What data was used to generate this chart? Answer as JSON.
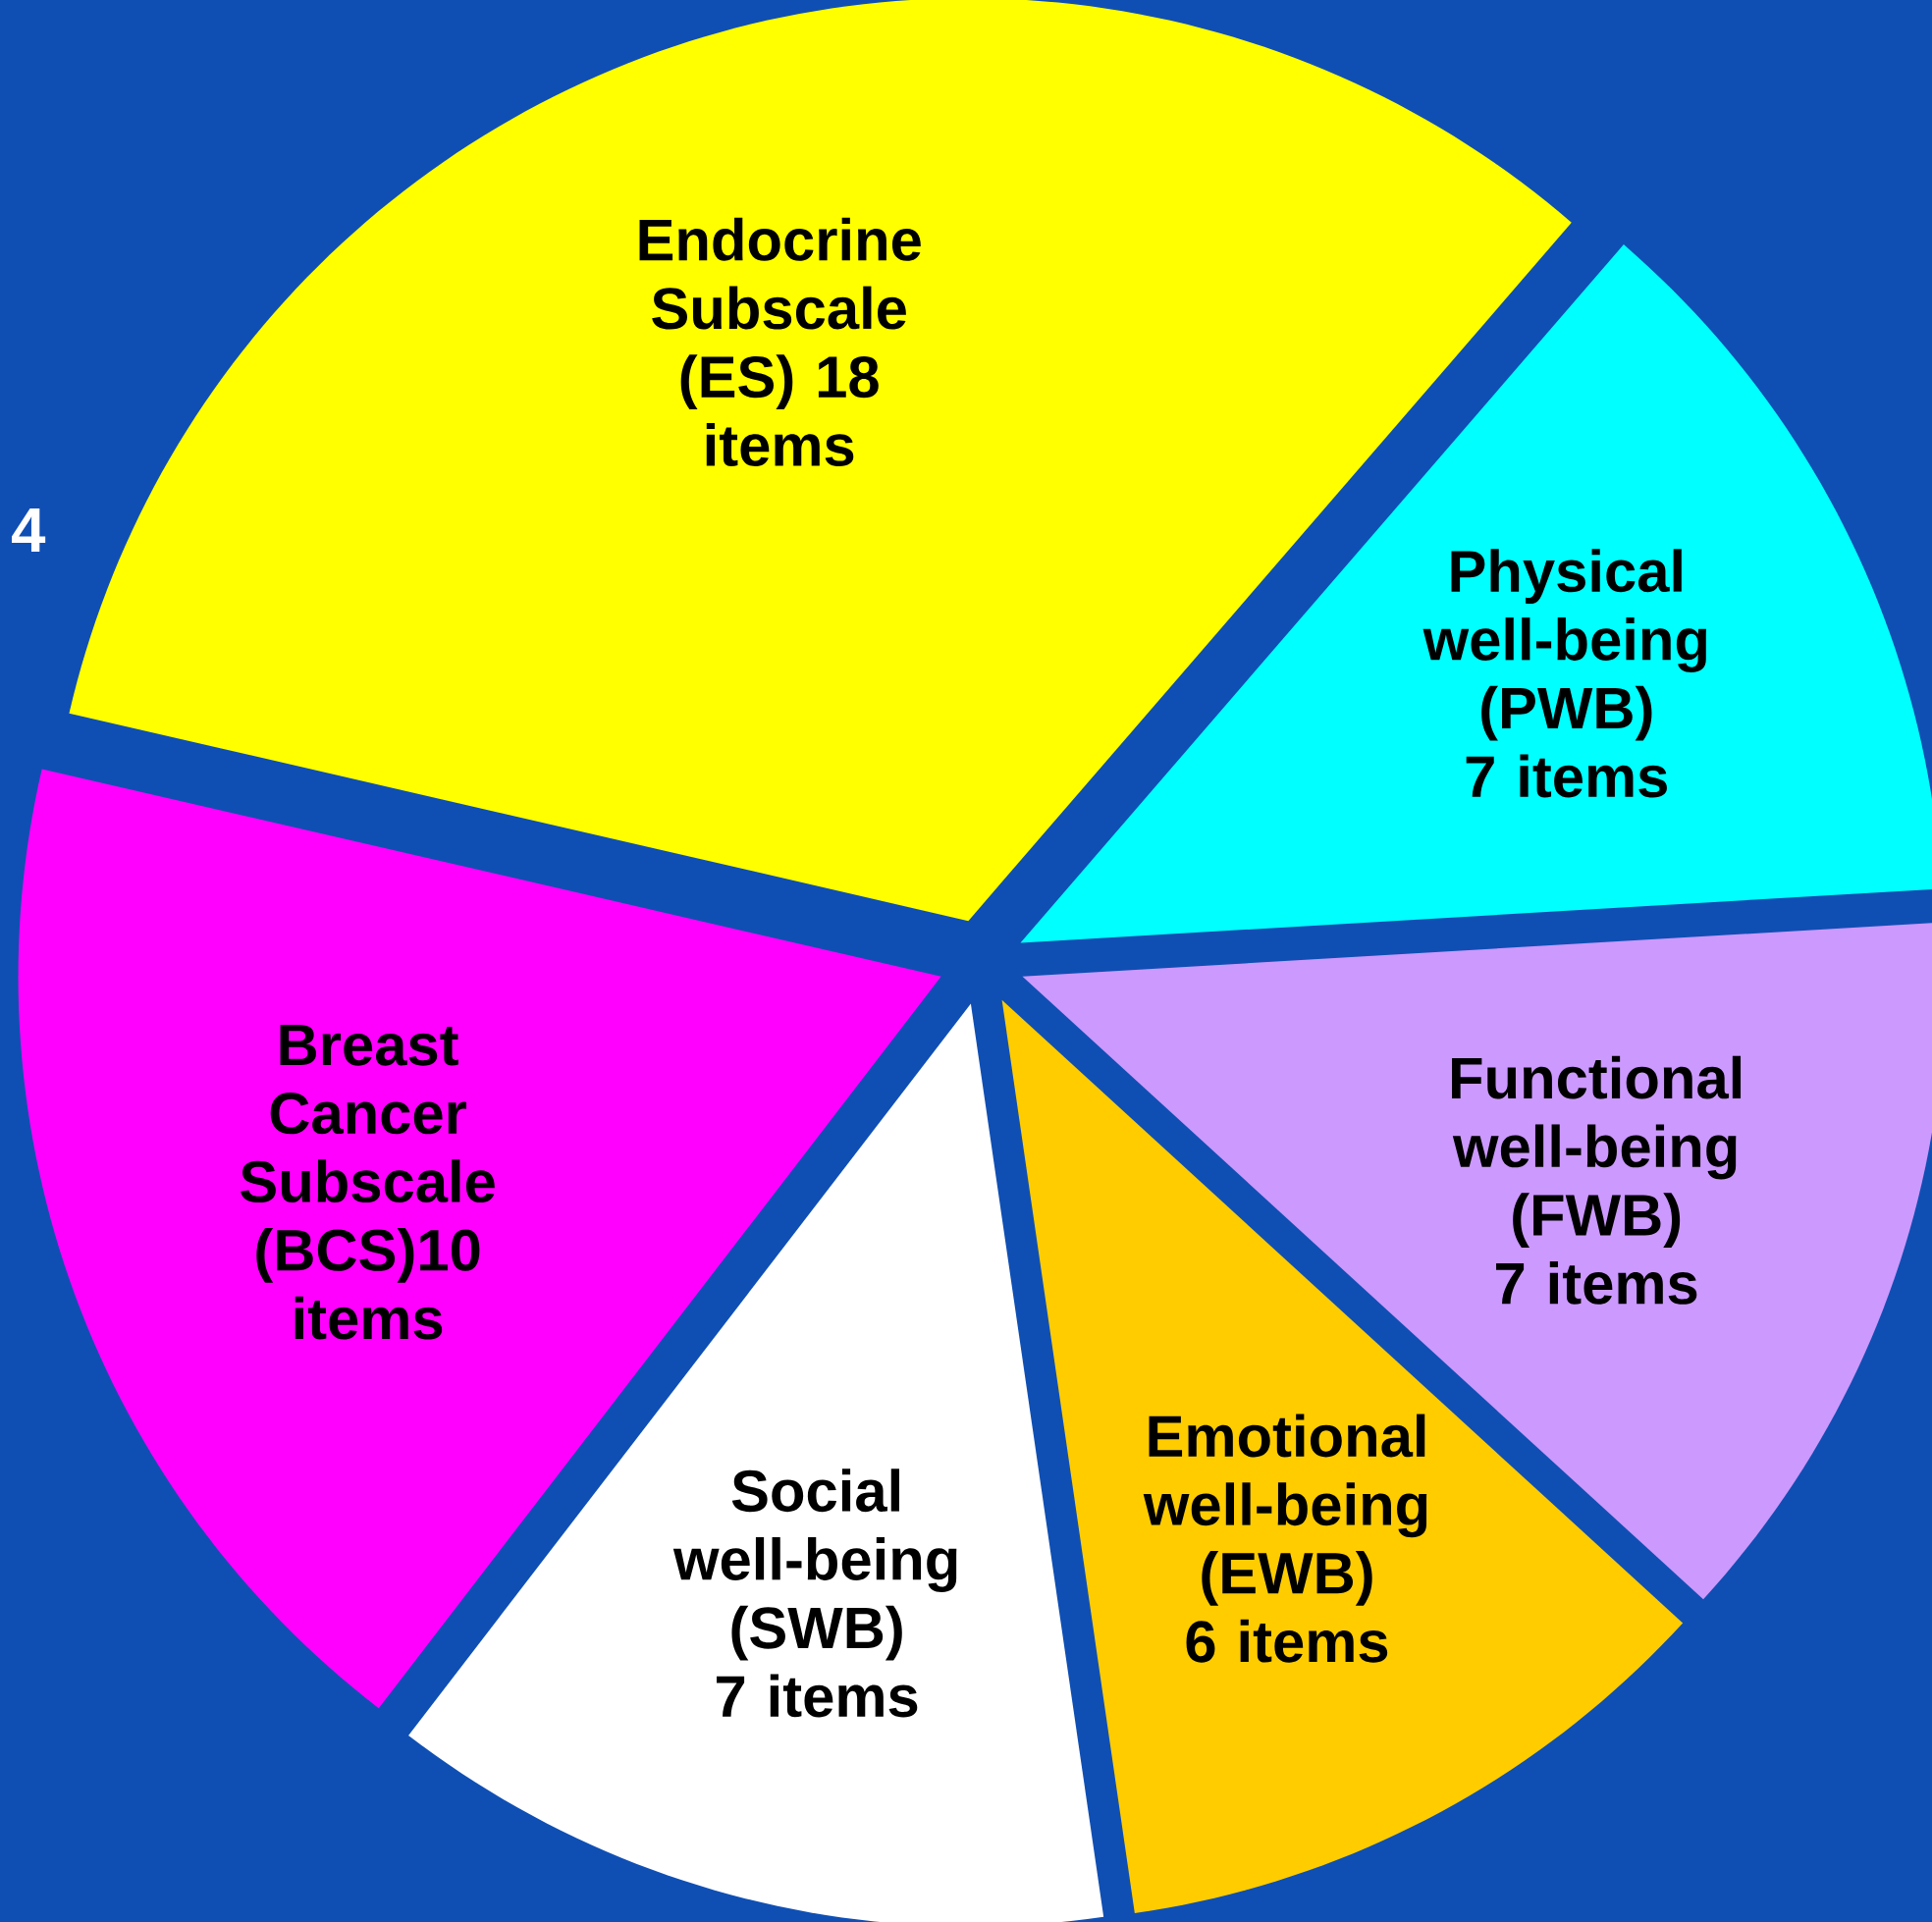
{
  "chart_data": {
    "type": "pie",
    "categories": [
      "Endocrine Subscale (ES) 18 items",
      "Physical well-being (PWB) 7 items",
      "Functional well-being (FWB) 7 items",
      "Emotional well-being (EWB) 6 items",
      "Social well-being (SWB) 7 items",
      "Breast Cancer Subscale (BCS)10 items"
    ],
    "values": [
      18,
      7,
      7,
      6,
      7,
      10
    ],
    "colors": [
      "#ffff00",
      "#00ffff",
      "#cc99ff",
      "#ffcc00",
      "#ffffff",
      "#ff00ff"
    ],
    "annotations": [
      "4"
    ]
  }
}
